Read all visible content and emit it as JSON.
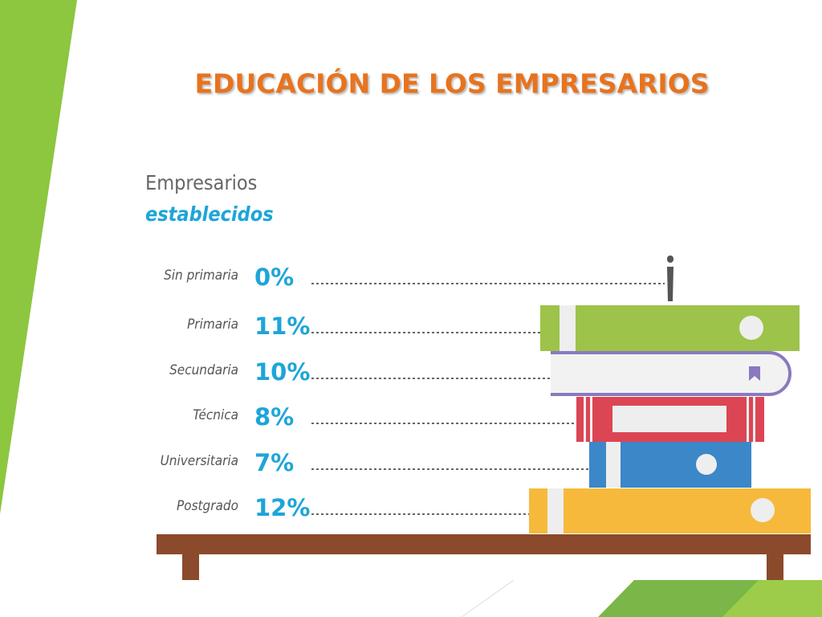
{
  "header": {
    "title": "EDUCACIÓN DE LOS EMPRESARIOS"
  },
  "subtitle": {
    "line1": "Empresarios",
    "line2": "establecidos"
  },
  "rows": [
    {
      "label": "Sin primaria",
      "value": "0%"
    },
    {
      "label": "Primaria",
      "value": "11%"
    },
    {
      "label": "Secundaria",
      "value": "10%"
    },
    {
      "label": "Técnica",
      "value": "8%"
    },
    {
      "label": "Universitaria",
      "value": "7%"
    },
    {
      "label": "Postgrado",
      "value": "12%"
    }
  ]
}
